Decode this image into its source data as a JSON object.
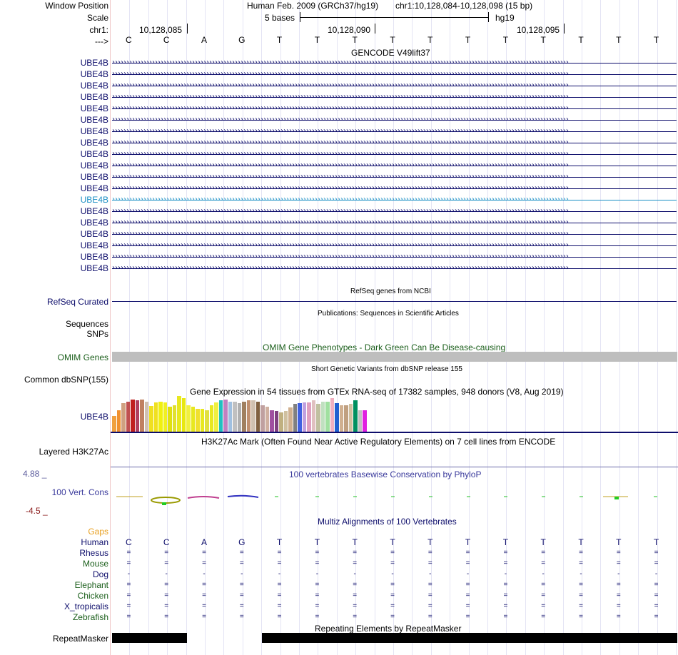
{
  "header": {
    "window_position_label": "Window Position",
    "scale_label": "Scale",
    "chr_label": "chr1:",
    "arrow_label": "--->",
    "assembly_title": "Human Feb. 2009 (GRCh37/hg19)",
    "position": "chr1:10,128,084-10,128,098 (15 bp)",
    "scale_text": "5 bases",
    "scale_db": "hg19",
    "ticks": [
      "10,128,085",
      "10,128,090",
      "10,128,095"
    ]
  },
  "bases": [
    "C",
    "C",
    "A",
    "G",
    "T",
    "T",
    "T",
    "T",
    "T",
    "T",
    "T",
    "T",
    "T",
    "T",
    "T"
  ],
  "tracks": {
    "gencode": {
      "title": "GENCODE V49lift37",
      "transcripts": [
        "UBE4B",
        "UBE4B",
        "UBE4B",
        "UBE4B",
        "UBE4B",
        "UBE4B",
        "UBE4B",
        "UBE4B",
        "UBE4B",
        "UBE4B",
        "UBE4B",
        "UBE4B",
        "UBE4B",
        "UBE4B",
        "UBE4B",
        "UBE4B",
        "UBE4B",
        "UBE4B",
        "UBE4B"
      ],
      "highlighted_index": 12
    },
    "refseq": {
      "title": "RefSeq genes from NCBI",
      "label": "RefSeq Curated"
    },
    "publications": {
      "title": "Publications: Sequences in Scientific Articles",
      "label1": "Sequences",
      "label2": "SNPs"
    },
    "omim": {
      "title": "OMIM Gene Phenotypes - Dark Green Can Be Disease-causing",
      "label": "OMIM Genes"
    },
    "dbsnp": {
      "title": "Short Genetic Variants from dbSNP release 155",
      "label": "Common dbSNP(155)"
    },
    "gtex": {
      "title": "Gene Expression in 54 tissues from GTEx RNA-seq of 17382 samples, 948 donors (V8, Aug 2019)",
      "label": "UBE4B",
      "values": [
        0.45,
        0.6,
        0.8,
        0.85,
        0.9,
        0.88,
        0.9,
        0.85,
        0.72,
        0.82,
        0.85,
        0.82,
        0.7,
        0.75,
        1.0,
        0.95,
        0.75,
        0.7,
        0.65,
        0.65,
        0.6,
        0.75,
        0.82,
        0.88,
        0.9,
        0.85,
        0.85,
        0.8,
        0.85,
        0.88,
        0.88,
        0.85,
        0.75,
        0.7,
        0.6,
        0.58,
        0.55,
        0.58,
        0.68,
        0.78,
        0.8,
        0.82,
        0.82,
        0.88,
        0.78,
        0.85,
        0.85,
        0.95,
        0.8,
        0.75,
        0.75,
        0.78,
        0.88,
        0.6
      ],
      "colors": [
        "#f0a040",
        "#f09030",
        "#d0a080",
        "#c05050",
        "#c02020",
        "#b04060",
        "#c08060",
        "#d0c0b0",
        "#f0e020",
        "#f0e020",
        "#f0f010",
        "#f0f020",
        "#e0e010",
        "#e0e030",
        "#e8e820",
        "#e8e810",
        "#f0f040",
        "#e8e820",
        "#f0e030",
        "#e8e820",
        "#e0e040",
        "#e8e820",
        "#f0f040",
        "#20c0c0",
        "#c080c0",
        "#a0c0e0",
        "#c0c0c0",
        "#b0b0b0",
        "#a08060",
        "#c09070",
        "#d0c0b0",
        "#806040",
        "#c0a0a0",
        "#d0b0a0",
        "#a050a0",
        "#804080",
        "#c0b080",
        "#d0c0a0",
        "#d0b090",
        "#808080",
        "#4060e0",
        "#c0a0e0",
        "#e0a0c0",
        "#e0c0c0",
        "#c0c0a0",
        "#c0e0c0",
        "#a0e0a0",
        "#f0b0c0",
        "#2060d0",
        "#d0b090",
        "#c0a080",
        "#d0c0a0",
        "#009060",
        "#c0c0c0"
      ],
      "last_color": "#e020e0"
    },
    "h3k27ac": {
      "title": "H3K27Ac Mark (Often Found Near Active Regulatory Elements) on 7 cell lines from ENCODE",
      "label": "Layered H3K27Ac"
    },
    "phylop": {
      "title": "100 vertebrates Basewise Conservation by PhyloP",
      "label": "100 Vert. Cons",
      "max": "4.88 _",
      "min": "-4.5 _"
    },
    "multiz": {
      "title": "Multiz Alignments of 100 Vertebrates",
      "gaps_label": "Gaps",
      "species": [
        {
          "name": "Human",
          "row": [
            "C",
            "C",
            "A",
            "G",
            "T",
            "T",
            "T",
            "T",
            "T",
            "T",
            "T",
            "T",
            "T",
            "T",
            "T"
          ]
        },
        {
          "name": "Rhesus",
          "row": [
            "=",
            "=",
            "=",
            "=",
            "=",
            "=",
            "=",
            "=",
            "=",
            "=",
            "=",
            "=",
            "=",
            "=",
            "="
          ]
        },
        {
          "name": "Mouse",
          "row": [
            "=",
            "=",
            "=",
            "=",
            "=",
            "=",
            "=",
            "=",
            "=",
            "=",
            "=",
            "=",
            "=",
            "=",
            "="
          ]
        },
        {
          "name": "Dog",
          "row": [
            "-",
            "-",
            "-",
            "-",
            "-",
            "-",
            "-",
            "-",
            "-",
            "-",
            "-",
            "-",
            "-",
            "-",
            "-"
          ]
        },
        {
          "name": "Elephant",
          "row": [
            "=",
            "=",
            "=",
            "=",
            "=",
            "=",
            "=",
            "=",
            "=",
            "=",
            "=",
            "=",
            "=",
            "=",
            "="
          ]
        },
        {
          "name": "Chicken",
          "row": [
            "=",
            "=",
            "=",
            "=",
            "=",
            "=",
            "=",
            "=",
            "=",
            "=",
            "=",
            "=",
            "=",
            "=",
            "="
          ]
        },
        {
          "name": "X_tropicalis",
          "row": [
            "=",
            "=",
            "=",
            "=",
            "=",
            "=",
            "=",
            "=",
            "=",
            "=",
            "=",
            "=",
            "=",
            "=",
            "="
          ]
        },
        {
          "name": "Zebrafish",
          "row": [
            "=",
            "=",
            "=",
            "=",
            "=",
            "=",
            "=",
            "=",
            "=",
            "=",
            "=",
            "=",
            "=",
            "=",
            "="
          ]
        }
      ]
    },
    "repeatmasker": {
      "title": "Repeating Elements by RepeatMasker",
      "label": "RepeatMasker"
    }
  },
  "colors": {
    "navy": "#0d0d6b",
    "omim_bar": "#bebebe",
    "omim_label": "#1a5e1a",
    "highlight": "#1a8fc4",
    "phylop_max": "#5b5b9c",
    "phylop_min": "#8b1a1a"
  }
}
